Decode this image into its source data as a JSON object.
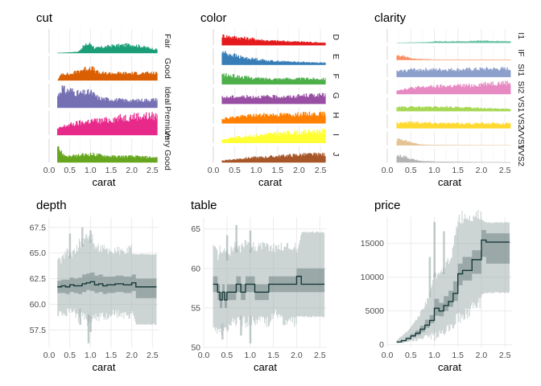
{
  "chart_data": [
    {
      "type": "area",
      "title": "cut",
      "xlabel": "carat",
      "xlim": [
        0,
        2.65
      ],
      "xticks": [
        "0.0",
        "0.5",
        "1.0",
        "1.5",
        "2.0",
        "2.5"
      ],
      "facets": [
        {
          "name": "Fair",
          "color": "#1b9e77",
          "density": [
            [
              0.2,
              0
            ],
            [
              0.7,
              0.05
            ],
            [
              0.8,
              0.25
            ],
            [
              0.9,
              0.35
            ],
            [
              1.0,
              0.4
            ],
            [
              1.1,
              0.2
            ],
            [
              1.5,
              0.3
            ],
            [
              2.0,
              0.35
            ],
            [
              2.6,
              0.15
            ]
          ]
        },
        {
          "name": "Good",
          "color": "#d95f02",
          "density": [
            [
              0.2,
              0
            ],
            [
              0.3,
              0.3
            ],
            [
              0.5,
              0.25
            ],
            [
              0.7,
              0.4
            ],
            [
              1.0,
              0.55
            ],
            [
              1.2,
              0.3
            ],
            [
              1.5,
              0.3
            ],
            [
              2.0,
              0.3
            ],
            [
              2.6,
              0.3
            ]
          ]
        },
        {
          "name": "Ideal",
          "color": "#7570b3",
          "density": [
            [
              0.2,
              0.5
            ],
            [
              0.3,
              0.85
            ],
            [
              0.4,
              0.7
            ],
            [
              0.5,
              0.75
            ],
            [
              0.7,
              0.6
            ],
            [
              1.0,
              0.65
            ],
            [
              1.2,
              0.4
            ],
            [
              1.5,
              0.35
            ],
            [
              2.0,
              0.3
            ],
            [
              2.6,
              0.35
            ]
          ]
        },
        {
          "name": "Premium",
          "color": "#e7298a",
          "density": [
            [
              0.2,
              0.25
            ],
            [
              0.4,
              0.4
            ],
            [
              0.7,
              0.5
            ],
            [
              1.0,
              0.6
            ],
            [
              1.3,
              0.6
            ],
            [
              1.6,
              0.7
            ],
            [
              2.1,
              0.8
            ],
            [
              2.6,
              0.8
            ]
          ]
        },
        {
          "name": "Very Good",
          "color": "#66a61e",
          "density": [
            [
              0.2,
              0.9
            ],
            [
              0.25,
              0.5
            ],
            [
              0.35,
              0.3
            ],
            [
              0.5,
              0.25
            ],
            [
              1.0,
              0.35
            ],
            [
              1.5,
              0.25
            ],
            [
              2.0,
              0.25
            ],
            [
              2.6,
              0.2
            ]
          ]
        }
      ]
    },
    {
      "type": "area",
      "title": "color",
      "xlabel": "carat",
      "xlim": [
        0,
        2.65
      ],
      "xticks": [
        "0.0",
        "0.5",
        "1.0",
        "1.5",
        "2.0",
        "2.5"
      ],
      "facets": [
        {
          "name": "D",
          "color": "#e41a1c",
          "density": [
            [
              0.2,
              0.6
            ],
            [
              0.5,
              0.5
            ],
            [
              0.9,
              0.4
            ],
            [
              1.2,
              0.3
            ],
            [
              1.6,
              0.25
            ],
            [
              2.2,
              0.2
            ],
            [
              2.6,
              0.15
            ]
          ]
        },
        {
          "name": "E",
          "color": "#377eb8",
          "density": [
            [
              0.2,
              0.8
            ],
            [
              0.4,
              0.65
            ],
            [
              0.6,
              0.5
            ],
            [
              0.8,
              0.4
            ],
            [
              1.0,
              0.35
            ],
            [
              1.3,
              0.25
            ],
            [
              1.7,
              0.2
            ],
            [
              2.2,
              0.15
            ],
            [
              2.6,
              0.12
            ]
          ]
        },
        {
          "name": "F",
          "color": "#4daf4a",
          "density": [
            [
              0.2,
              0.6
            ],
            [
              0.5,
              0.5
            ],
            [
              0.9,
              0.4
            ],
            [
              1.2,
              0.35
            ],
            [
              1.6,
              0.35
            ],
            [
              2.2,
              0.35
            ],
            [
              2.6,
              0.35
            ]
          ]
        },
        {
          "name": "G",
          "color": "#984ea3",
          "density": [
            [
              0.2,
              0.4
            ],
            [
              0.5,
              0.45
            ],
            [
              0.9,
              0.45
            ],
            [
              1.3,
              0.45
            ],
            [
              1.8,
              0.45
            ],
            [
              2.2,
              0.55
            ],
            [
              2.6,
              0.55
            ]
          ]
        },
        {
          "name": "H",
          "color": "#ff7f00",
          "density": [
            [
              0.2,
              0.3
            ],
            [
              0.5,
              0.4
            ],
            [
              0.9,
              0.5
            ],
            [
              1.3,
              0.55
            ],
            [
              1.8,
              0.55
            ],
            [
              2.2,
              0.6
            ],
            [
              2.6,
              0.6
            ]
          ]
        },
        {
          "name": "I",
          "color": "#ffff33",
          "density": [
            [
              0.2,
              0.2
            ],
            [
              0.5,
              0.35
            ],
            [
              0.9,
              0.45
            ],
            [
              1.3,
              0.55
            ],
            [
              1.8,
              0.65
            ],
            [
              2.2,
              0.7
            ],
            [
              2.6,
              0.75
            ]
          ]
        },
        {
          "name": "J",
          "color": "#a65628",
          "density": [
            [
              0.2,
              0.1
            ],
            [
              0.5,
              0.2
            ],
            [
              0.9,
              0.3
            ],
            [
              1.3,
              0.35
            ],
            [
              1.8,
              0.45
            ],
            [
              2.2,
              0.5
            ],
            [
              2.6,
              0.5
            ]
          ]
        }
      ]
    },
    {
      "type": "area",
      "title": "clarity",
      "xlabel": "carat",
      "xlim": [
        0,
        2.65
      ],
      "xticks": [
        "0.0",
        "0.5",
        "1.0",
        "1.5",
        "2.0",
        "2.5"
      ],
      "facets": [
        {
          "name": "I1",
          "color": "#66c2a5",
          "density": [
            [
              0.2,
              0
            ],
            [
              0.9,
              0.05
            ],
            [
              1.0,
              0.1
            ],
            [
              1.5,
              0.1
            ],
            [
              2.0,
              0.15
            ],
            [
              2.6,
              0.1
            ]
          ]
        },
        {
          "name": "IF",
          "color": "#fc8d62",
          "density": [
            [
              0.2,
              0.3
            ],
            [
              0.35,
              0.25
            ],
            [
              0.5,
              0.1
            ],
            [
              0.7,
              0.05
            ],
            [
              1.0,
              0.02
            ],
            [
              2.6,
              0.0
            ]
          ]
        },
        {
          "name": "SI1",
          "color": "#8da0cb",
          "density": [
            [
              0.2,
              0.4
            ],
            [
              0.5,
              0.55
            ],
            [
              0.9,
              0.55
            ],
            [
              1.2,
              0.55
            ],
            [
              1.6,
              0.55
            ],
            [
              2.1,
              0.6
            ],
            [
              2.6,
              0.6
            ]
          ]
        },
        {
          "name": "SI2",
          "color": "#e78ac3",
          "density": [
            [
              0.2,
              0.3
            ],
            [
              0.5,
              0.45
            ],
            [
              0.9,
              0.55
            ],
            [
              1.3,
              0.6
            ],
            [
              1.8,
              0.65
            ],
            [
              2.1,
              0.8
            ],
            [
              2.6,
              0.85
            ]
          ]
        },
        {
          "name": "VS1",
          "color": "#a6d854",
          "density": [
            [
              0.2,
              0.3
            ],
            [
              0.5,
              0.3
            ],
            [
              0.9,
              0.3
            ],
            [
              1.3,
              0.3
            ],
            [
              1.8,
              0.25
            ],
            [
              2.2,
              0.2
            ],
            [
              2.6,
              0.15
            ]
          ]
        },
        {
          "name": "VS2",
          "color": "#ffd92f",
          "density": [
            [
              0.2,
              0.4
            ],
            [
              0.5,
              0.45
            ],
            [
              0.9,
              0.4
            ],
            [
              1.3,
              0.35
            ],
            [
              1.8,
              0.35
            ],
            [
              2.2,
              0.35
            ],
            [
              2.6,
              0.35
            ]
          ]
        },
        {
          "name": "VVS1",
          "color": "#e5c494",
          "density": [
            [
              0.2,
              0.45
            ],
            [
              0.35,
              0.4
            ],
            [
              0.5,
              0.2
            ],
            [
              0.7,
              0.05
            ],
            [
              1.0,
              0.02
            ],
            [
              2.6,
              0.0
            ]
          ]
        },
        {
          "name": "VVS2",
          "color": "#b3b3b3",
          "density": [
            [
              0.2,
              0.5
            ],
            [
              0.35,
              0.45
            ],
            [
              0.5,
              0.25
            ],
            [
              0.7,
              0.1
            ],
            [
              1.0,
              0.05
            ],
            [
              2.6,
              0.0
            ]
          ]
        }
      ]
    },
    {
      "type": "line",
      "title": "depth",
      "xlabel": "carat",
      "xlim": [
        0,
        2.65
      ],
      "ylim": [
        55.8,
        68.5
      ],
      "xticks": [
        "0.0",
        "0.5",
        "1.0",
        "1.5",
        "2.0",
        "2.5"
      ],
      "yticks": [
        "57.5",
        "60.0",
        "62.5",
        "65.0",
        "67.5"
      ],
      "x": [
        0.2,
        0.3,
        0.4,
        0.5,
        0.6,
        0.7,
        0.8,
        0.9,
        1.0,
        1.1,
        1.2,
        1.3,
        1.4,
        1.5,
        1.6,
        1.8,
        2.0,
        2.1,
        2.6
      ],
      "median": [
        61.7,
        61.8,
        61.7,
        61.9,
        61.8,
        61.8,
        62.0,
        62.1,
        62.2,
        61.9,
        62.0,
        61.8,
        61.9,
        61.9,
        62.0,
        61.9,
        62.1,
        61.7,
        61.7
      ],
      "q25": [
        61.1,
        61.1,
        61.0,
        61.2,
        61.1,
        61.0,
        61.2,
        61.4,
        61.3,
        61.1,
        61.2,
        61.0,
        61.1,
        61.1,
        61.2,
        61.1,
        61.3,
        60.6,
        60.6
      ],
      "q75": [
        62.3,
        62.4,
        62.4,
        62.6,
        62.5,
        62.6,
        62.9,
        63.0,
        63.1,
        62.8,
        62.9,
        62.7,
        62.7,
        62.7,
        62.8,
        62.7,
        62.9,
        62.5,
        62.5
      ],
      "lo": [
        59.5,
        59.7,
        59.5,
        59.8,
        59.7,
        59.3,
        59.8,
        59.2,
        58.8,
        59.2,
        59.3,
        59.3,
        59.4,
        59.6,
        59.5,
        59.4,
        59.4,
        58.1,
        58.1
      ],
      "hi": [
        63.8,
        64.0,
        64.6,
        64.5,
        64.6,
        65.3,
        65.6,
        65.9,
        66.0,
        65.2,
        65.0,
        64.9,
        64.8,
        64.7,
        64.8,
        64.6,
        64.9,
        64.8,
        64.8
      ],
      "min_spikes": [
        [
          0.95,
          56.2
        ],
        [
          0.75,
          58.0
        ],
        [
          1.0,
          57.3
        ]
      ],
      "max_spikes": [
        [
          0.8,
          67.5
        ],
        [
          1.0,
          67.2
        ],
        [
          0.5,
          66.9
        ]
      ]
    },
    {
      "type": "line",
      "title": "table",
      "xlabel": "carat",
      "xlim": [
        0,
        2.65
      ],
      "ylim": [
        50,
        66.5
      ],
      "xticks": [
        "0.0",
        "0.5",
        "1.0",
        "1.5",
        "2.0",
        "2.5"
      ],
      "yticks": [
        "50",
        "55",
        "60",
        "65"
      ],
      "x": [
        0.2,
        0.3,
        0.35,
        0.4,
        0.45,
        0.5,
        0.6,
        0.7,
        0.8,
        0.9,
        1.0,
        1.1,
        1.2,
        1.4,
        1.5,
        1.7,
        2.0,
        2.1,
        2.6
      ],
      "median": [
        58,
        57,
        56,
        57,
        56,
        57,
        57,
        58,
        57,
        58,
        58,
        57,
        57,
        58,
        58,
        58,
        59,
        58,
        58
      ],
      "q25": [
        57,
        56,
        55,
        56,
        55,
        56,
        56,
        57,
        56,
        57,
        57,
        56,
        56,
        57,
        57,
        57,
        57,
        57,
        57
      ],
      "q75": [
        59,
        58,
        57,
        58,
        57,
        58,
        58,
        59,
        58,
        59,
        59,
        58,
        58,
        59,
        59,
        59,
        60,
        60,
        60
      ],
      "lo": [
        53,
        53,
        53,
        53,
        53,
        53,
        54,
        54,
        54,
        54,
        54,
        54,
        54,
        54,
        55,
        54,
        54,
        54,
        54
      ],
      "hi": [
        62,
        61,
        62,
        61,
        62,
        61,
        62,
        62,
        62,
        63,
        62,
        62,
        62,
        62,
        62,
        62,
        62,
        64.5,
        64.5
      ],
      "min_spikes": [
        [
          0.4,
          51.0
        ],
        [
          0.8,
          51.5
        ],
        [
          1.0,
          50.5
        ]
      ],
      "max_spikes": [
        [
          0.7,
          65.5
        ],
        [
          1.0,
          64.8
        ],
        [
          0.5,
          64.2
        ]
      ]
    },
    {
      "type": "line",
      "title": "price",
      "xlabel": "carat",
      "xlim": [
        0,
        2.65
      ],
      "ylim": [
        -400,
        18900
      ],
      "xticks": [
        "0.0",
        "0.5",
        "1.0",
        "1.5",
        "2.0",
        "2.5"
      ],
      "yticks": [
        "0",
        "5000",
        "10000",
        "15000"
      ],
      "x": [
        0.2,
        0.3,
        0.4,
        0.5,
        0.6,
        0.7,
        0.8,
        0.9,
        1.0,
        1.1,
        1.2,
        1.3,
        1.4,
        1.5,
        1.6,
        1.8,
        2.0,
        2.1,
        2.6
      ],
      "median": [
        400,
        600,
        900,
        1300,
        1700,
        2300,
        2900,
        3600,
        5400,
        5000,
        5800,
        6400,
        7600,
        10500,
        11000,
        12600,
        15500,
        15200,
        15200
      ],
      "q25": [
        350,
        500,
        800,
        1100,
        1400,
        1900,
        2500,
        3200,
        4300,
        4200,
        5000,
        5600,
        6500,
        8800,
        9500,
        10500,
        13000,
        12000,
        12000
      ],
      "q75": [
        500,
        700,
        1100,
        1600,
        2100,
        2800,
        3700,
        4400,
        6800,
        6200,
        7200,
        8000,
        9400,
        12000,
        13000,
        14000,
        17000,
        16500,
        16500
      ],
      "lo": [
        300,
        350,
        500,
        700,
        900,
        1200,
        1500,
        1800,
        2000,
        2200,
        2800,
        3200,
        3800,
        5000,
        5500,
        6500,
        7500,
        7800,
        7800
      ],
      "hi": [
        700,
        1200,
        1800,
        2600,
        3400,
        4500,
        5600,
        7000,
        10000,
        9400,
        10500,
        11800,
        13500,
        17500,
        17800,
        18200,
        18500,
        18000,
        18000
      ],
      "min_spikes": [],
      "max_spikes": [
        [
          1.0,
          18200
        ],
        [
          0.9,
          13000
        ],
        [
          1.2,
          16800
        ]
      ]
    }
  ]
}
